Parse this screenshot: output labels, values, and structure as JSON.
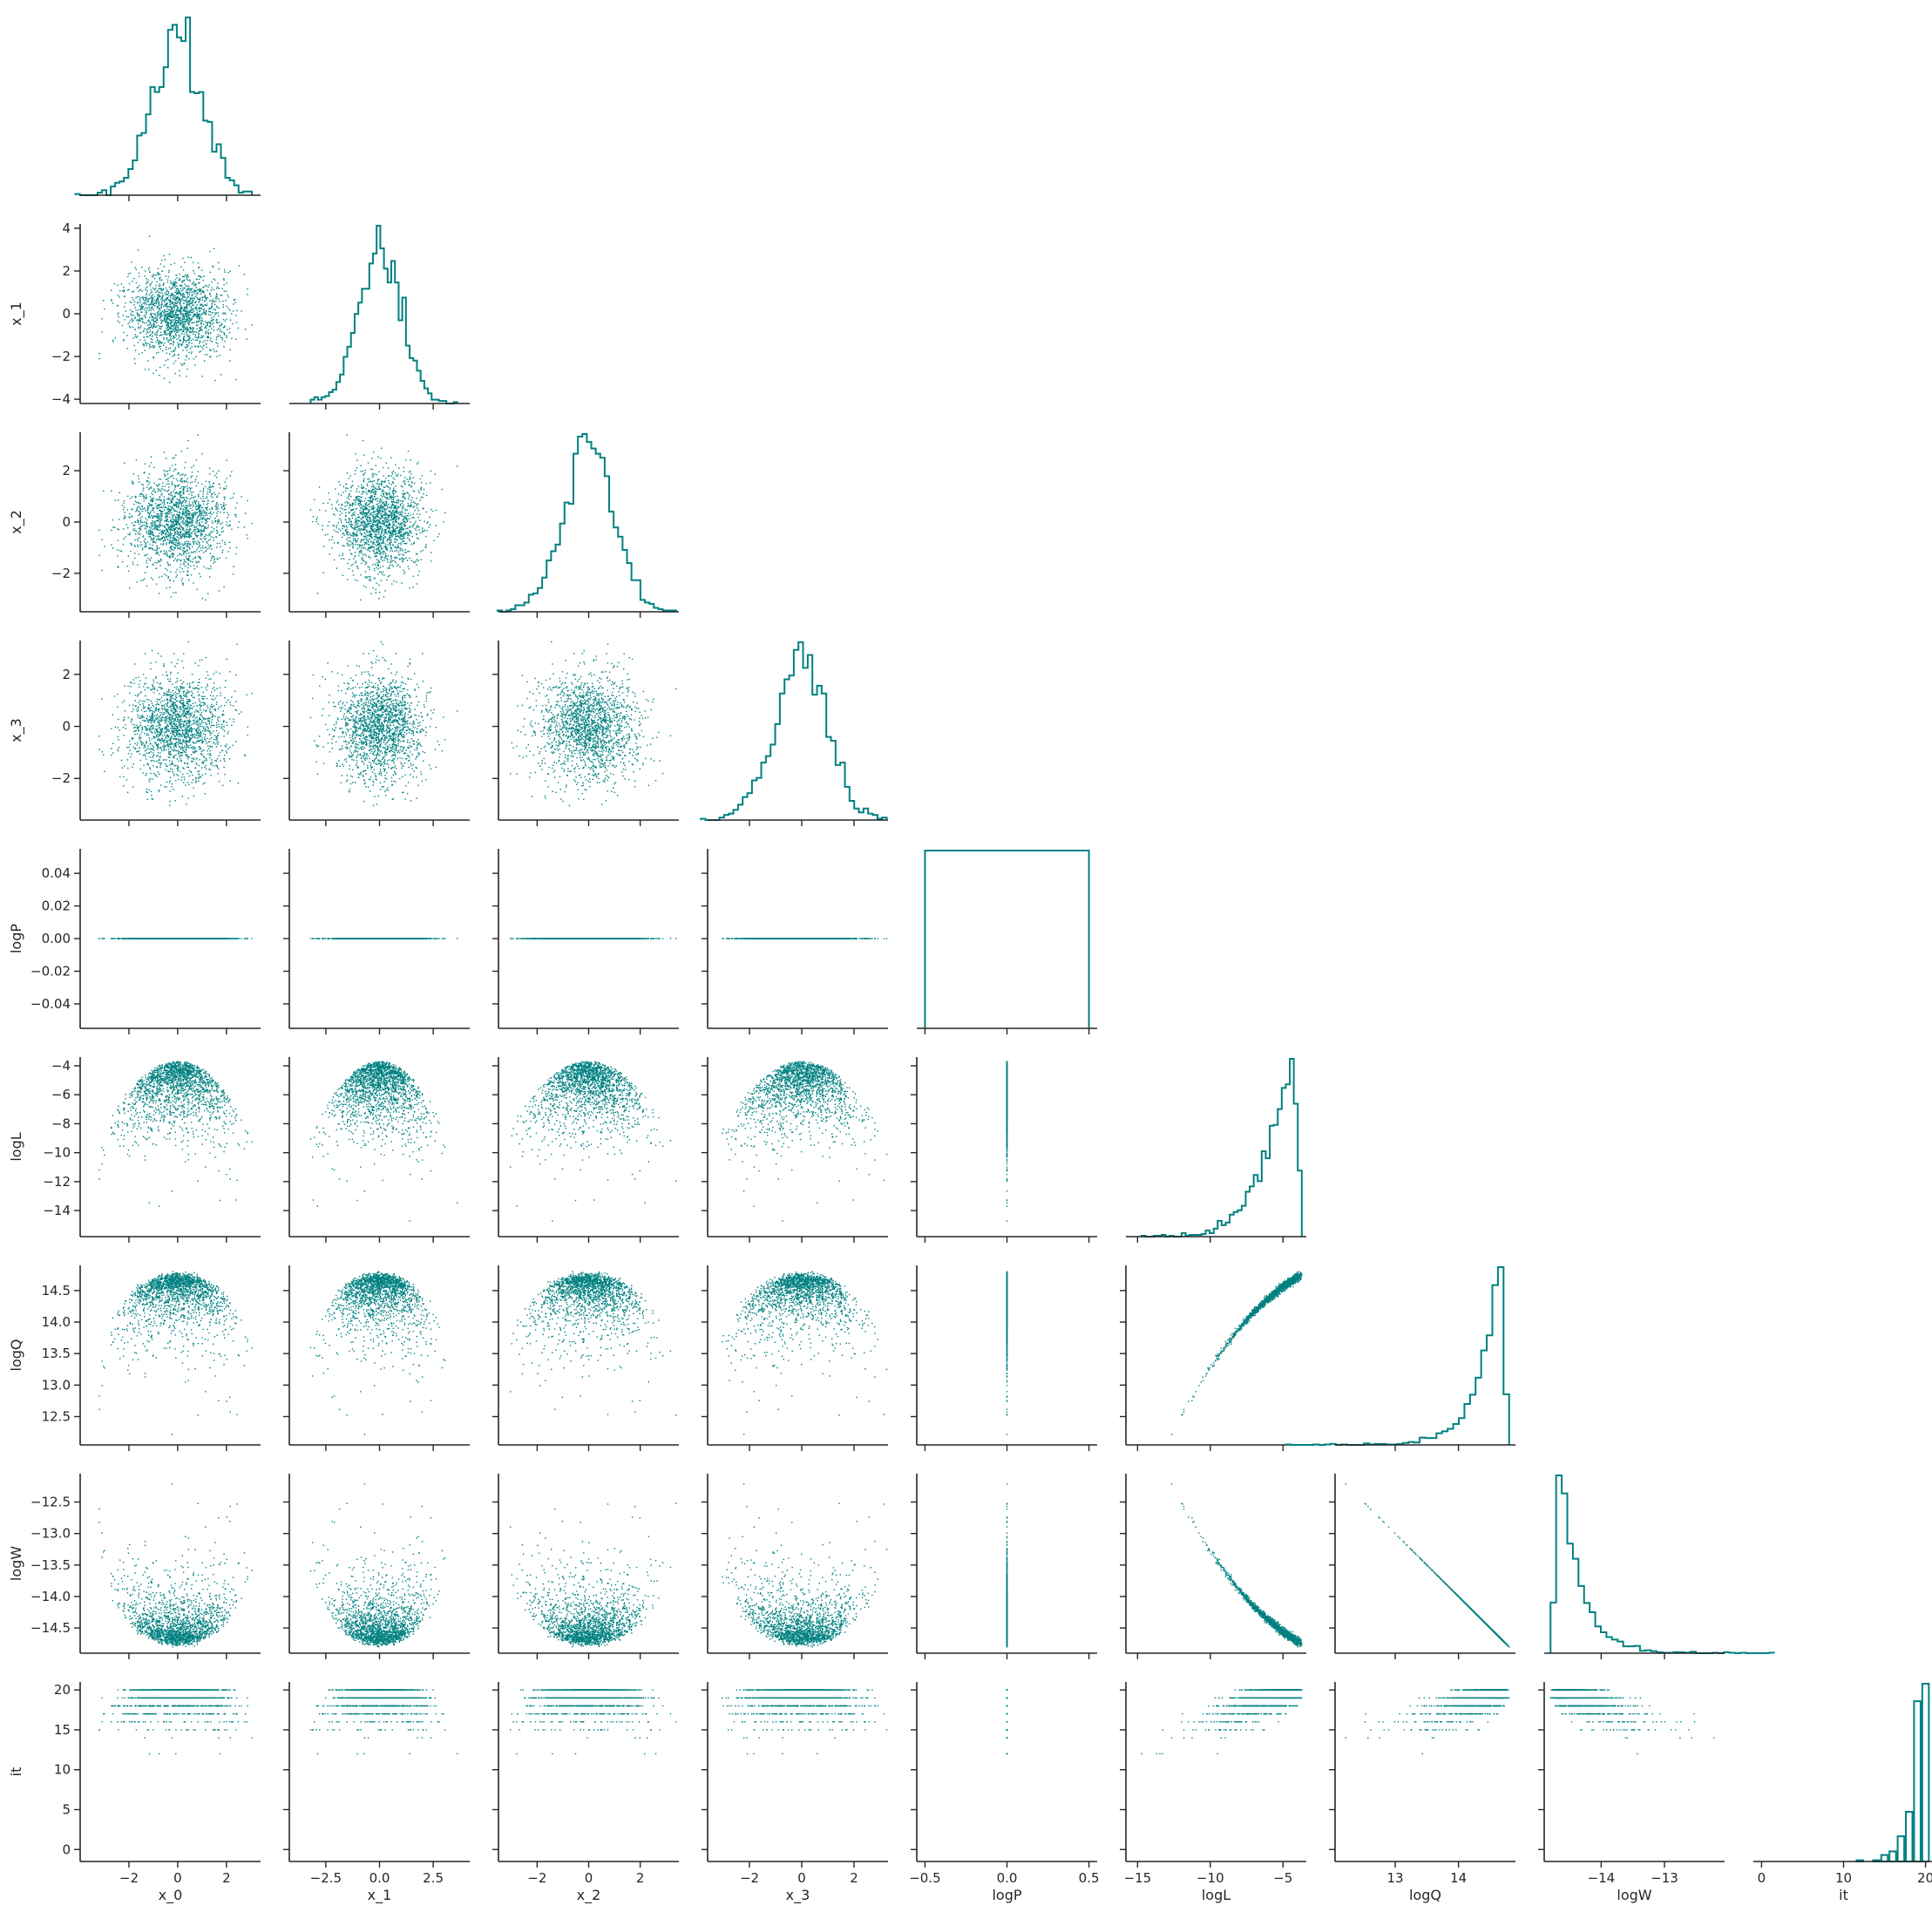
{
  "chart_data": {
    "type": "pairplot-corner",
    "color": "#008080",
    "n_points": 1800,
    "variables": [
      "x_0",
      "x_1",
      "x_2",
      "x_3",
      "logP",
      "logL",
      "logQ",
      "logW",
      "it"
    ],
    "axes": {
      "x_0": {
        "lim": [
          -4.0,
          3.4
        ],
        "ticks": [
          -2,
          0,
          2
        ],
        "tick_labels": [
          "−2",
          "0",
          "2"
        ]
      },
      "x_1": {
        "lim": [
          -4.2,
          4.2
        ],
        "ticks": [
          -4,
          -2,
          0,
          2,
          4
        ],
        "tick_labels": [
          "−4",
          "−2",
          "0",
          "2",
          "4"
        ],
        "x_ticks": [
          -2.5,
          0.0,
          2.5
        ],
        "x_tick_labels": [
          "−2.5",
          "0.0",
          "2.5"
        ]
      },
      "x_2": {
        "lim": [
          -3.5,
          3.5
        ],
        "ticks": [
          -2,
          0,
          2
        ],
        "tick_labels": [
          "−2",
          "0",
          "2"
        ]
      },
      "x_3": {
        "lim": [
          -3.6,
          3.3
        ],
        "ticks": [
          -2,
          0,
          2
        ],
        "tick_labels": [
          "−2",
          "0",
          "2"
        ]
      },
      "logP": {
        "lim": [
          -0.055,
          0.055
        ],
        "ticks": [
          -0.04,
          -0.02,
          0.0,
          0.02,
          0.04
        ],
        "tick_labels": [
          "−0.04",
          "−0.02",
          "0.00",
          "0.02",
          "0.04"
        ],
        "x_lim": [
          -0.55,
          0.55
        ],
        "x_ticks": [
          -0.5,
          0.0,
          0.5
        ],
        "x_tick_labels": [
          "−0.5",
          "0.0",
          "0.5"
        ]
      },
      "logL": {
        "lim": [
          -15.8,
          -3.4
        ],
        "ticks": [
          -14,
          -12,
          -10,
          -8,
          -6,
          -4
        ],
        "tick_labels": [
          "−14",
          "−12",
          "−10",
          "−8",
          "−6",
          "−4"
        ],
        "x_ticks": [
          -15,
          -10,
          -5
        ],
        "x_tick_labels": [
          "−15",
          "−10",
          "−5"
        ]
      },
      "logQ": {
        "lim": [
          12.05,
          14.9
        ],
        "ticks": [
          12.5,
          13.0,
          13.5,
          14.0,
          14.5
        ],
        "tick_labels": [
          "12.5",
          "13.0",
          "13.5",
          "14.0",
          "14.5"
        ],
        "x_ticks": [
          13,
          14
        ],
        "x_tick_labels": [
          "13",
          "14"
        ]
      },
      "logW": {
        "lim": [
          -14.9,
          -12.05
        ],
        "ticks": [
          -14.5,
          -14.0,
          -13.5,
          -13.0,
          -12.5
        ],
        "tick_labels": [
          "−14.5",
          "−14.0",
          "−13.5",
          "−13.0",
          "−12.5"
        ],
        "x_ticks": [
          -14,
          -13
        ],
        "x_tick_labels": [
          "−14",
          "−13"
        ]
      },
      "it": {
        "lim": [
          -1.5,
          21.0
        ],
        "ticks": [
          0,
          5,
          10,
          15,
          20
        ],
        "tick_labels": [
          "0",
          "5",
          "10",
          "15",
          "20"
        ],
        "x_lim": [
          -1.0,
          21.0
        ],
        "x_ticks": [
          0,
          10,
          20
        ],
        "x_tick_labels": [
          "0",
          "10",
          "20"
        ]
      }
    },
    "diagonal": "step histogram",
    "lower": "scatter",
    "upper": "none",
    "grid": false,
    "legend": "none"
  }
}
